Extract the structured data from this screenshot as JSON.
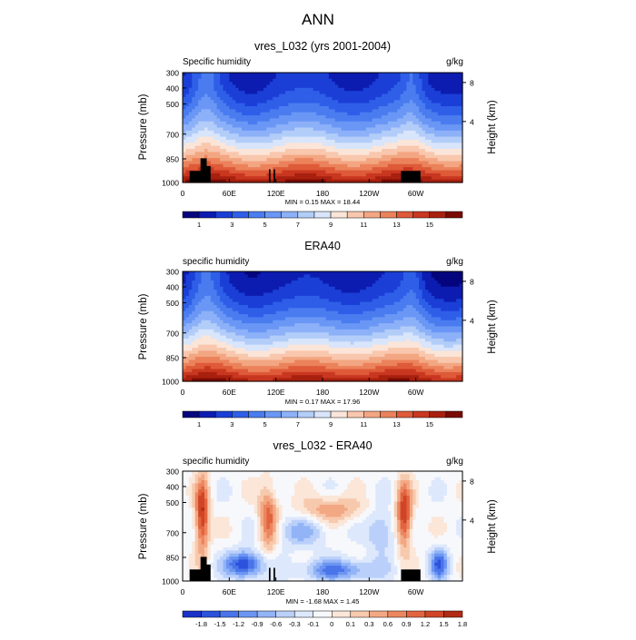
{
  "figure": {
    "title": "ANN"
  },
  "colors": {
    "abs_palette": [
      "#05057e",
      "#0d1cb0",
      "#1b3fd6",
      "#2f5fe8",
      "#4a7cf0",
      "#6a97f5",
      "#8db1f8",
      "#b3cdf9",
      "#d8e5fb",
      "#fbe5d8",
      "#f8c7ad",
      "#f3a682",
      "#eb825b",
      "#de5a38",
      "#c93720",
      "#a8200f",
      "#7a0b04"
    ],
    "diff_palette": [
      "#1a32c8",
      "#2c52dc",
      "#4a74ea",
      "#6c95f2",
      "#92b4f7",
      "#bad0fa",
      "#dde8fc",
      "#f7f8fc",
      "#fbe6d8",
      "#f7c9ad",
      "#f3a884",
      "#ec8660",
      "#e2643f",
      "#d04526",
      "#b32a14"
    ],
    "land_mask": "#000000"
  },
  "chart_data": [
    {
      "type": "heatmap",
      "title": "vres_L032 (yrs 2001-2004)",
      "left_label": "Specific humidity",
      "right_label": "g/kg",
      "ylabel": "Pressure (mb)",
      "right_axis_label": "Height (km)",
      "x_ticks": [
        "0",
        "60E",
        "120E",
        "180",
        "120W",
        "60W"
      ],
      "y_ticks": [
        "300",
        "400",
        "500",
        "700",
        "850",
        "1000"
      ],
      "right_ticks": [
        "8",
        "4"
      ],
      "stats": "MIN =   0.15  MAX =  18.44",
      "colorbar_labels": [
        "1",
        "3",
        "5",
        "7",
        "9",
        "11",
        "13",
        "15"
      ],
      "min": 0.15,
      "max": 18.44
    },
    {
      "type": "heatmap",
      "title": "ERA40",
      "left_label": "specific humidity",
      "right_label": "g/kg",
      "ylabel": "Pressure (mb)",
      "right_axis_label": "Height (km)",
      "x_ticks": [
        "0",
        "60E",
        "120E",
        "180",
        "120W",
        "60W"
      ],
      "y_ticks": [
        "300",
        "400",
        "500",
        "700",
        "850",
        "1000"
      ],
      "right_ticks": [
        "8",
        "4"
      ],
      "stats": "MIN =   0.17  MAX =  17.96",
      "colorbar_labels": [
        "1",
        "3",
        "5",
        "7",
        "9",
        "11",
        "13",
        "15"
      ],
      "min": 0.17,
      "max": 17.96
    },
    {
      "type": "heatmap",
      "title": "vres_L032 - ERA40",
      "left_label": "specific humidity",
      "right_label": "g/kg",
      "ylabel": "Pressure (mb)",
      "right_axis_label": "Height (km)",
      "x_ticks": [
        "0",
        "60E",
        "120E",
        "180",
        "120W",
        "60W"
      ],
      "y_ticks": [
        "300",
        "400",
        "500",
        "700",
        "850",
        "1000"
      ],
      "right_ticks": [
        "8",
        "4"
      ],
      "stats": "MIN =  -1.68  MAX =   1.45",
      "colorbar_labels": [
        "-1.8",
        "-1.5",
        "-1.2",
        "-0.9",
        "-0.6",
        "-0.3",
        "-0.1",
        "0",
        "0.1",
        "0.3",
        "0.6",
        "0.9",
        "1.2",
        "1.5",
        "1.8"
      ],
      "min": -1.68,
      "max": 1.45
    }
  ]
}
